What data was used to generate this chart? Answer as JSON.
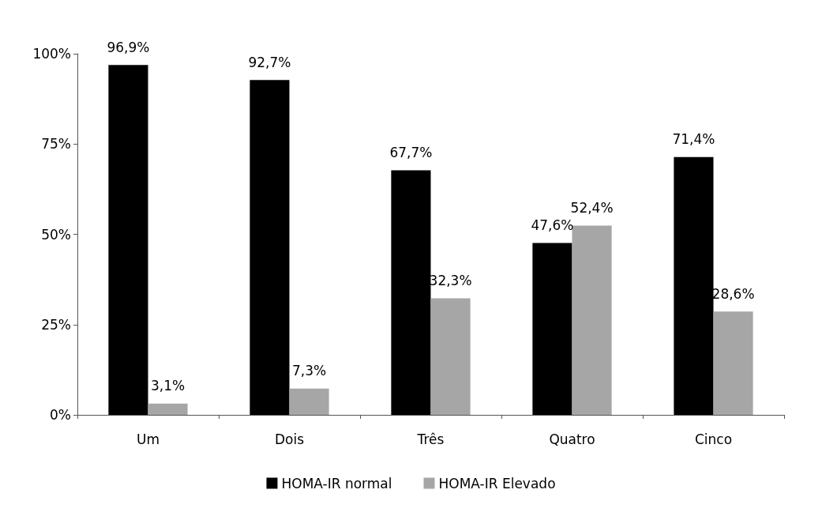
{
  "chart_data": {
    "type": "bar",
    "categories": [
      "Um",
      "Dois",
      "Três",
      "Quatro",
      "Cinco"
    ],
    "series": [
      {
        "name": "HOMA-IR normal",
        "color": "#000000",
        "values": [
          96.9,
          92.7,
          67.7,
          47.6,
          71.4
        ],
        "value_labels": [
          "96,9%",
          "92,7%",
          "67,7%",
          "47,6%",
          "71,4%"
        ]
      },
      {
        "name": "HOMA-IR Elevado",
        "color": "#a6a6a6",
        "values": [
          3.1,
          7.3,
          32.3,
          52.4,
          28.6
        ],
        "value_labels": [
          "3,1%",
          "7,3%",
          "32,3%",
          "52,4%",
          "28,6%"
        ]
      }
    ],
    "ylim": [
      0,
      100
    ],
    "yticks": [
      {
        "value": 0,
        "label": "0%"
      },
      {
        "value": 25,
        "label": "25%"
      },
      {
        "value": 50,
        "label": "50%"
      },
      {
        "value": 75,
        "label": "75%"
      },
      {
        "value": 100,
        "label": "100%"
      }
    ],
    "grid": false,
    "legend": "bottom"
  }
}
